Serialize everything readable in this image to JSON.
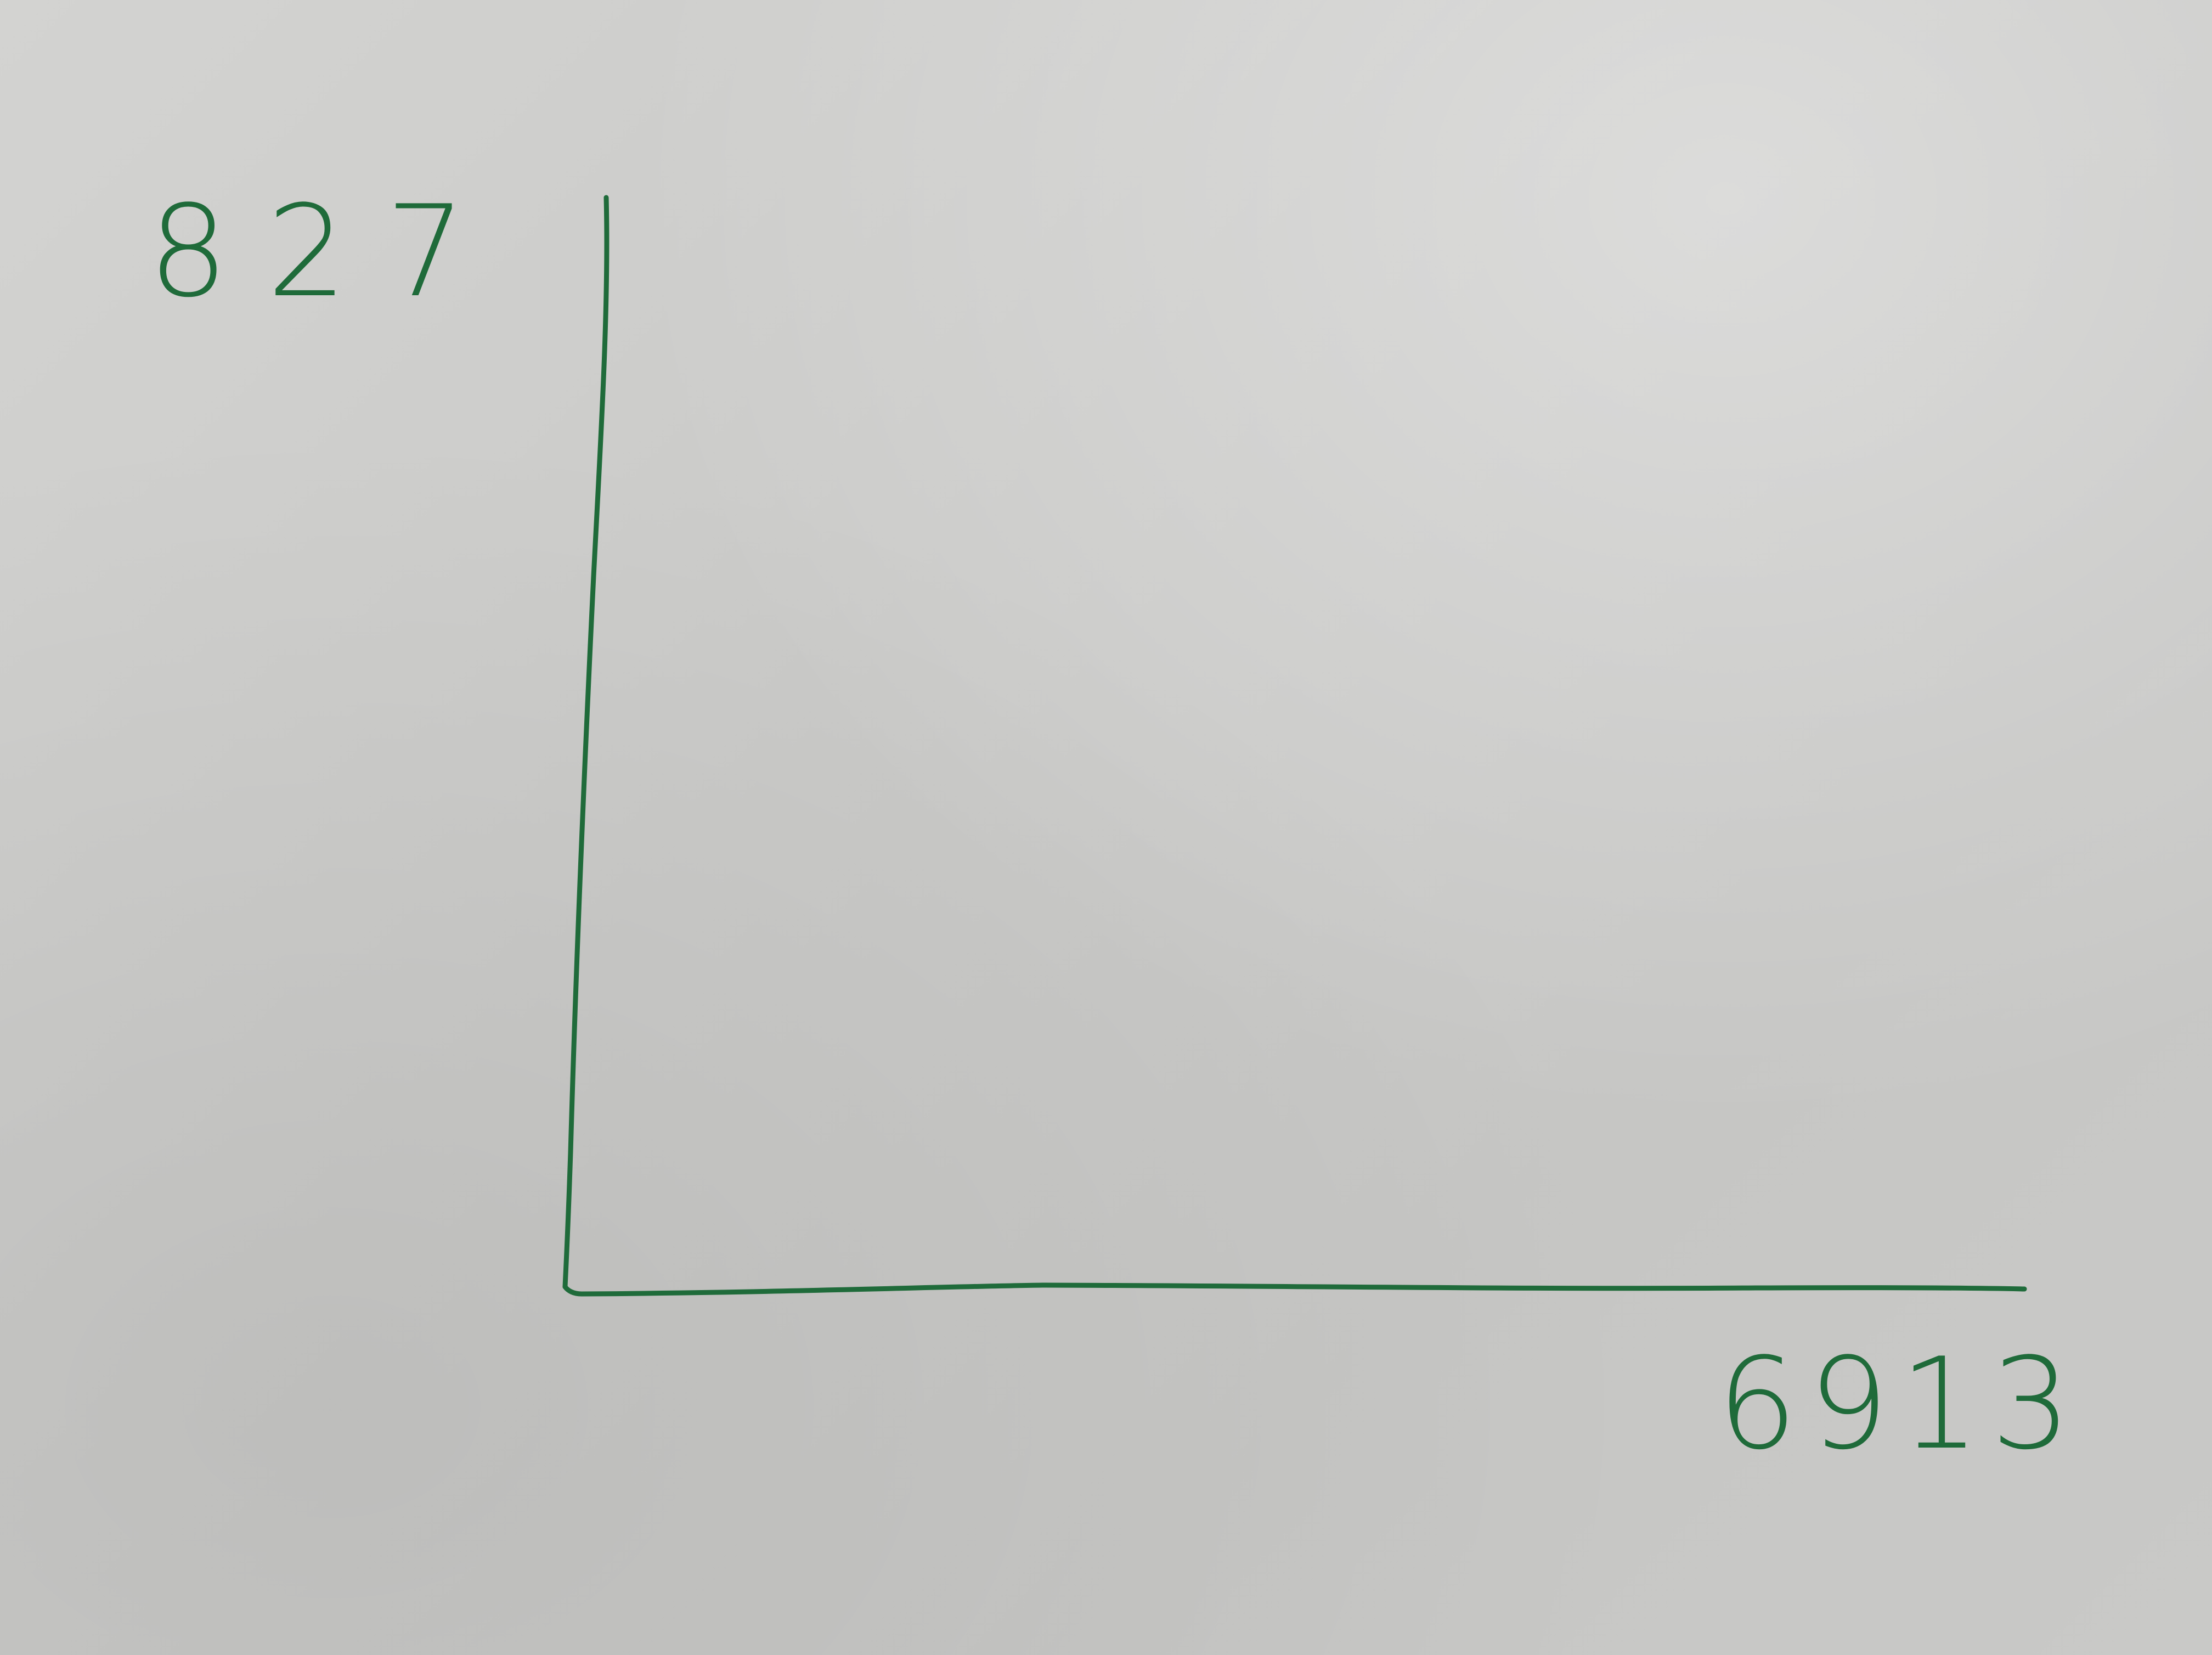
{
  "colors": {
    "ink": "#1f6b3a",
    "paper": "#cbcbc9"
  },
  "labels": {
    "y_axis": "827",
    "x_axis": "6913"
  }
}
